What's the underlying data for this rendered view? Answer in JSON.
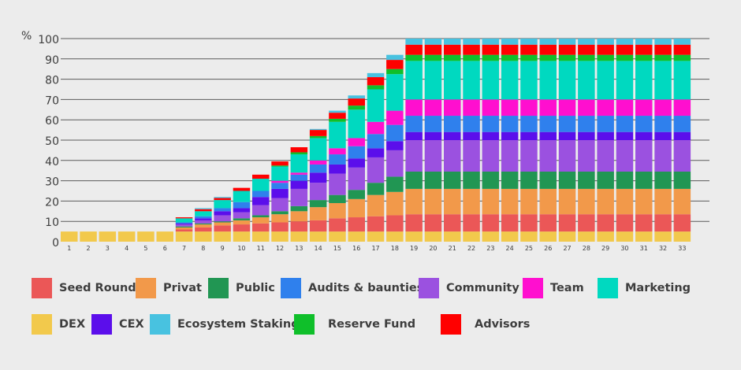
{
  "chart_data": {
    "type": "bar",
    "stacked": true,
    "ylabel": "%",
    "ylim": [
      0,
      100
    ],
    "yticks": [
      0,
      10,
      20,
      30,
      40,
      50,
      60,
      70,
      80,
      90,
      100
    ],
    "grid": true,
    "legend_position": "bottom",
    "categories": [
      "1",
      "2",
      "3",
      "4",
      "5",
      "6",
      "7",
      "8",
      "9",
      "10",
      "11",
      "12",
      "13",
      "14",
      "15",
      "16",
      "17",
      "18",
      "19",
      "20",
      "21",
      "22",
      "23",
      "24",
      "25",
      "26",
      "27",
      "28",
      "29",
      "30",
      "31",
      "32",
      "33"
    ],
    "series": [
      {
        "name": "DEX",
        "color": "#f2c94c",
        "values": [
          5,
          5,
          5,
          5,
          5,
          5,
          5,
          5,
          5,
          5,
          5,
          5,
          5,
          5,
          5,
          5,
          5,
          5,
          5,
          5,
          5,
          5,
          5,
          5,
          5,
          5,
          5,
          5,
          5,
          5,
          5,
          5,
          5
        ]
      },
      {
        "name": "Seed Round",
        "color": "#eb5757",
        "values": [
          0,
          0,
          0,
          0,
          0,
          0,
          1,
          2,
          3,
          3.5,
          4,
          4.5,
          5,
          5.5,
          6.5,
          7,
          7.5,
          8,
          8.5,
          8.5,
          8.5,
          8.5,
          8.5,
          8.5,
          8.5,
          8.5,
          8.5,
          8.5,
          8.5,
          8.5,
          8.5,
          8.5,
          8.5
        ]
      },
      {
        "name": "Privat",
        "color": "#f2994a",
        "values": [
          0,
          0,
          0,
          0,
          0,
          0,
          1,
          1.5,
          1.5,
          2,
          3,
          4,
          5,
          6.5,
          7.5,
          9,
          10.5,
          11.5,
          12.5,
          12.5,
          12.5,
          12.5,
          12.5,
          12.5,
          12.5,
          12.5,
          12.5,
          12.5,
          12.5,
          12.5,
          12.5,
          12.5,
          12.5
        ]
      },
      {
        "name": "Public",
        "color": "#219653",
        "values": [
          0,
          0,
          0,
          0,
          0,
          0,
          0.5,
          0.5,
          0.5,
          1,
          1,
          1.5,
          2.5,
          3.5,
          4,
          4.5,
          6,
          7.5,
          8.5,
          8.5,
          8.5,
          8.5,
          8.5,
          8.5,
          8.5,
          8.5,
          8.5,
          8.5,
          8.5,
          8.5,
          8.5,
          8.5,
          8.5
        ]
      },
      {
        "name": "Community",
        "color": "#9b51e0",
        "values": [
          0,
          0,
          0,
          0,
          0,
          0,
          1,
          1.5,
          3,
          3,
          5,
          6.5,
          8.5,
          8.5,
          10.5,
          11,
          12.5,
          13,
          15.5,
          15.5,
          15.5,
          15.5,
          15.5,
          15.5,
          15.5,
          15.5,
          15.5,
          15.5,
          15.5,
          15.5,
          15.5,
          15.5,
          15.5
        ]
      },
      {
        "name": "CEX",
        "color": "#5b0eeb",
        "values": [
          0,
          0,
          0,
          0,
          0,
          0,
          0.5,
          1,
          2,
          2,
          4,
          4.5,
          4,
          5,
          4.5,
          4.5,
          4.5,
          4.5,
          4,
          4,
          4,
          4,
          4,
          4,
          4,
          4,
          4,
          4,
          4,
          4,
          4,
          4,
          4
        ]
      },
      {
        "name": "Audits & baunties",
        "color": "#2f80ed",
        "values": [
          0,
          0,
          0,
          0,
          0,
          0,
          0.5,
          1,
          1.5,
          3,
          3,
          3,
          3,
          4,
          5,
          6,
          7,
          8,
          8,
          8,
          8,
          8,
          8,
          8,
          8,
          8,
          8,
          8,
          8,
          8,
          8,
          8,
          8
        ]
      },
      {
        "name": "Team",
        "color": "#ff0fcf",
        "values": [
          0,
          0,
          0,
          0,
          0,
          0,
          0,
          0,
          0,
          0,
          0,
          1,
          1,
          2,
          3,
          4,
          6,
          7,
          8,
          8,
          8,
          8,
          8,
          8,
          8,
          8,
          8,
          8,
          8,
          8,
          8,
          8,
          8
        ]
      },
      {
        "name": "Marketing",
        "color": "#00d9c0",
        "values": [
          0,
          0,
          0,
          0,
          0,
          0,
          2,
          2.5,
          4,
          5.5,
          6,
          7,
          9,
          11,
          13,
          14,
          16,
          18,
          19,
          19,
          19,
          19,
          19,
          19,
          19,
          19,
          19,
          19,
          19,
          19,
          19,
          19,
          19
        ]
      },
      {
        "name": "Reserve Fund",
        "color": "#0fbf2a",
        "values": [
          0,
          0,
          0,
          0,
          0,
          0,
          0,
          0,
          0,
          0,
          0,
          0.5,
          1,
          1,
          1.5,
          2,
          2,
          2.5,
          3,
          3,
          3,
          3,
          3,
          3,
          3,
          3,
          3,
          3,
          3,
          3,
          3,
          3,
          3
        ]
      },
      {
        "name": "Advisors",
        "color": "#ff0000",
        "values": [
          0,
          0,
          0,
          0,
          0,
          0,
          0.5,
          1,
          1,
          1.5,
          2,
          2,
          2.5,
          3,
          3,
          3.5,
          4,
          4.5,
          5,
          5,
          5,
          5,
          5,
          5,
          5,
          5,
          5,
          5,
          5,
          5,
          5,
          5,
          5
        ]
      },
      {
        "name": "Ecosystem Staking",
        "color": "#48c2e0",
        "values": [
          0,
          0,
          0,
          0,
          0,
          0,
          0,
          0.5,
          0.5,
          0,
          0,
          0,
          0,
          0.5,
          1,
          1.5,
          2,
          2.5,
          3,
          3,
          3,
          3,
          3,
          3,
          3,
          3,
          3,
          3,
          3,
          3,
          3,
          3,
          3
        ]
      }
    ]
  },
  "legend": {
    "row1": [
      {
        "label": "Seed Round",
        "color": "#eb5757"
      },
      {
        "label": "Privat",
        "color": "#f2994a"
      },
      {
        "label": "Public",
        "color": "#219653"
      },
      {
        "label": "Audits & baunties",
        "color": "#2f80ed"
      },
      {
        "label": "Community",
        "color": "#9b51e0"
      },
      {
        "label": "Team",
        "color": "#ff0fcf"
      },
      {
        "label": "Marketing",
        "color": "#00d9c0"
      }
    ],
    "row2": [
      {
        "label": "DEX",
        "color": "#f2c94c"
      },
      {
        "label": "CEX",
        "color": "#5b0eeb"
      },
      {
        "label": "Ecosystem Staking",
        "color": "#48c2e0"
      },
      {
        "label": "Reserve Fund",
        "color": "#0fbf2a"
      },
      {
        "label": "Advisors",
        "color": "#ff0000"
      }
    ]
  }
}
